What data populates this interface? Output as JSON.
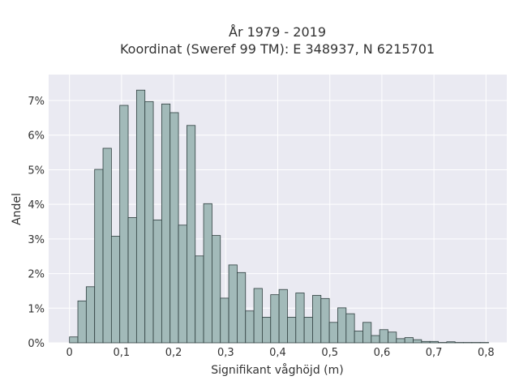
{
  "chart_data": {
    "type": "bar",
    "title_line1": "År 1979 - 2019",
    "title_line2": "Koordinat (Sweref 99 TM): E 348937, N 6215701",
    "xlabel": "Signifikant våghöjd (m)",
    "ylabel": "Andel",
    "xlim": [
      -0.04,
      0.84
    ],
    "ylim": [
      0,
      7.75
    ],
    "bin_width": 0.0161,
    "x_ticks": [
      {
        "value": 0,
        "label": "0"
      },
      {
        "value": 0.1,
        "label": "0,1"
      },
      {
        "value": 0.2,
        "label": "0,2"
      },
      {
        "value": 0.3,
        "label": "0,3"
      },
      {
        "value": 0.4,
        "label": "0,4"
      },
      {
        "value": 0.5,
        "label": "0,5"
      },
      {
        "value": 0.6,
        "label": "0,6"
      },
      {
        "value": 0.7,
        "label": "0,7"
      },
      {
        "value": 0.8,
        "label": "0,8"
      }
    ],
    "y_ticks": [
      {
        "value": 0,
        "label": "0%"
      },
      {
        "value": 1,
        "label": "1%"
      },
      {
        "value": 2,
        "label": "2%"
      },
      {
        "value": 3,
        "label": "3%"
      },
      {
        "value": 4,
        "label": "4%"
      },
      {
        "value": 5,
        "label": "5%"
      },
      {
        "value": 6,
        "label": "6%"
      },
      {
        "value": 7,
        "label": "7%"
      }
    ],
    "bin_starts": [
      0,
      0.0161,
      0.0322,
      0.0483,
      0.0644,
      0.0805,
      0.0966,
      0.1127,
      0.1288,
      0.1449,
      0.161,
      0.1771,
      0.1932,
      0.2093,
      0.2254,
      0.2415,
      0.2576,
      0.2737,
      0.2898,
      0.3059,
      0.322,
      0.3381,
      0.3542,
      0.3703,
      0.3864,
      0.4025,
      0.4186,
      0.4347,
      0.4508,
      0.4669,
      0.483,
      0.4991,
      0.5152,
      0.5313,
      0.5474,
      0.5635,
      0.5796,
      0.5957,
      0.6118,
      0.6279,
      0.644,
      0.6601,
      0.6762,
      0.6923,
      0.7084,
      0.7245,
      0.7406,
      0.7567,
      0.7728,
      0.7889
    ],
    "values": [
      0.17,
      1.21,
      1.62,
      5.01,
      5.62,
      3.08,
      6.86,
      3.62,
      7.3,
      6.97,
      3.55,
      6.9,
      6.65,
      3.4,
      6.28,
      2.51,
      4.02,
      3.1,
      1.29,
      2.25,
      2.03,
      0.92,
      1.57,
      0.74,
      1.39,
      1.54,
      0.74,
      1.44,
      0.74,
      1.37,
      1.28,
      0.59,
      1.01,
      0.84,
      0.34,
      0.59,
      0.21,
      0.38,
      0.31,
      0.12,
      0.15,
      0.09,
      0.04,
      0.04,
      0.01,
      0.03,
      0.01,
      0.01,
      0.01,
      0.01
    ],
    "bar_color": "#a2bab9",
    "bar_edge_color": "#2f3f3f",
    "plot_background": "#eaeaf2",
    "grid": true,
    "grid_color": "#ffffff"
  }
}
